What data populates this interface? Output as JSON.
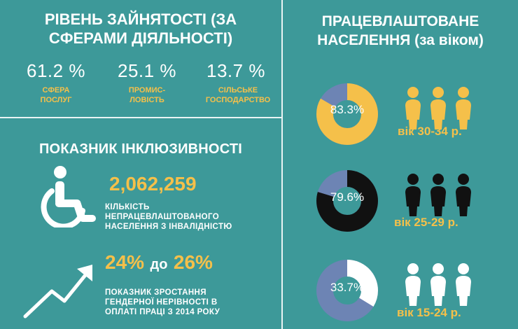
{
  "left": {
    "employment_title": "РІВЕНЬ ЗАЙНЯТОСТІ (ЗА СФЕРАМИ ДІЯЛЬНОСТІ)",
    "employment_stats": [
      {
        "value": "61.2 %",
        "label_line1": "СФЕРА",
        "label_line2": "ПОСЛУГ"
      },
      {
        "value": "25.1 %",
        "label_line1": "ПРОМИС-",
        "label_line2": "ЛОВІСТЬ"
      },
      {
        "value": "13.7 %",
        "label_line1": "СІЛЬСЬКЕ",
        "label_line2": "ГОСПОДАРСТВО"
      }
    ],
    "inclusion_title": "ПОКАЗНИК ІНКЛЮЗИВНОСТІ",
    "disabled_count": "2,062,259",
    "disabled_caption_line1": "КІЛЬКІСТЬ",
    "disabled_caption_line2": "НЕПРАЦЕВЛАШТОВАНОГО",
    "disabled_caption_line3": "НАСЕЛЕННЯ З ІНВАЛІДНІСТЮ",
    "gap_from": "24%",
    "gap_connector": "до",
    "gap_to": "26%",
    "gap_caption_line1": "ПОКАЗНИК ЗРОСТАННЯ",
    "gap_caption_line2": "ГЕНДЕРНОЇ НЕРІВНОСТІ В",
    "gap_caption_line3": "ОПЛАТІ ПРАЦІ З 2014 РОКУ",
    "icons": [
      "wheelchair-icon",
      "trend-up-arrow-icon",
      "person-icon"
    ]
  },
  "right": {
    "title_line1": "ПРАЦЕВЛАШТОВАНЕ",
    "title_line2": "НАСЕЛЕННЯ (за віком)"
  },
  "colors": {
    "background": "#3d9999",
    "accent_yellow": "#f5c04a",
    "remainder_blue": "#6d84b4",
    "black": "#111111",
    "white": "#ffffff"
  },
  "chart_data": [
    {
      "type": "pie",
      "values": [
        61.2,
        25.1,
        13.7
      ],
      "categories": [
        "СФЕРА ПОСЛУГ",
        "ПРОМИСЛОВІСТЬ",
        "СІЛЬСЬКЕ ГОСПОДАРСТВО"
      ],
      "title": "РІВЕНЬ ЗАЙНЯТОСТІ (ЗА СФЕРАМИ ДІЯЛЬНОСТІ)"
    },
    {
      "type": "pie",
      "title": "ПРАЦЕВЛАШТОВАНЕ НАСЕЛЕННЯ (за віком)",
      "rings": [
        {
          "label": "83.3%",
          "value": 83.3,
          "age": "вік 30-34 р.",
          "color": "#f5c04a"
        },
        {
          "label": "79.6%",
          "value": 79.6,
          "age": "вік 25-29 р.",
          "color": "#111111"
        },
        {
          "label": "33.7%",
          "value": 33.7,
          "age": "вік 15-24 р.",
          "color": "#ffffff"
        }
      ]
    }
  ]
}
